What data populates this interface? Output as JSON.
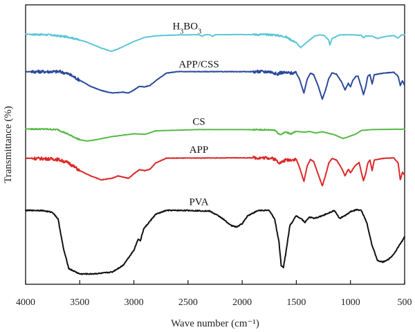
{
  "chart_data": {
    "type": "line",
    "title": "",
    "xlabel": "Wave number (cm⁻¹)",
    "ylabel": "Transmittance (%)",
    "xlim": [
      4000,
      500
    ],
    "x_reversed": true,
    "xticks": [
      4000,
      3500,
      3000,
      2500,
      2000,
      1500,
      1000,
      500
    ],
    "grid": false,
    "legend": "labels-above-curves",
    "series": [
      {
        "name_main": "H",
        "name_sub1": "3",
        "name_mid": "BO",
        "name_sub2": "3",
        "color": "#5bc6d9",
        "offset": 0.88,
        "amplitude": 0.07,
        "label_x": 2510,
        "points": [
          [
            4000,
            0.96
          ],
          [
            3800,
            0.93
          ],
          [
            3600,
            0.8
          ],
          [
            3450,
            0.55
          ],
          [
            3300,
            0.18
          ],
          [
            3210,
            0.0
          ],
          [
            3150,
            0.12
          ],
          [
            3000,
            0.55
          ],
          [
            2900,
            0.78
          ],
          [
            2800,
            0.87
          ],
          [
            2600,
            0.92
          ],
          [
            2400,
            0.93
          ],
          [
            2370,
            0.85
          ],
          [
            2340,
            0.93
          ],
          [
            2300,
            0.93
          ],
          [
            2270,
            0.83
          ],
          [
            2250,
            0.93
          ],
          [
            2000,
            0.94
          ],
          [
            1800,
            0.94
          ],
          [
            1700,
            0.92
          ],
          [
            1600,
            0.82
          ],
          [
            1500,
            0.48
          ],
          [
            1460,
            0.2
          ],
          [
            1420,
            0.42
          ],
          [
            1380,
            0.62
          ],
          [
            1330,
            0.86
          ],
          [
            1280,
            0.92
          ],
          [
            1240,
            0.88
          ],
          [
            1200,
            0.62
          ],
          [
            1190,
            0.35
          ],
          [
            1170,
            0.72
          ],
          [
            1100,
            0.92
          ],
          [
            1000,
            0.93
          ],
          [
            900,
            0.9
          ],
          [
            880,
            0.75
          ],
          [
            860,
            0.86
          ],
          [
            800,
            0.85
          ],
          [
            750,
            0.72
          ],
          [
            700,
            0.8
          ],
          [
            650,
            0.85
          ],
          [
            600,
            0.88
          ],
          [
            560,
            0.74
          ],
          [
            530,
            0.92
          ],
          [
            500,
            0.92
          ]
        ]
      },
      {
        "name": "APP/CSS",
        "color": "#2b4a9b",
        "offset": 0.68,
        "amplitude": 0.12,
        "label_x": 2400,
        "points": [
          [
            4000,
            1.0
          ],
          [
            3800,
            1.0
          ],
          [
            3680,
            1.0
          ],
          [
            3600,
            0.92
          ],
          [
            3500,
            0.72
          ],
          [
            3400,
            0.52
          ],
          [
            3300,
            0.38
          ],
          [
            3200,
            0.3
          ],
          [
            3100,
            0.33
          ],
          [
            3050,
            0.3
          ],
          [
            3000,
            0.4
          ],
          [
            2950,
            0.52
          ],
          [
            2900,
            0.5
          ],
          [
            2850,
            0.55
          ],
          [
            2800,
            0.7
          ],
          [
            2700,
            0.95
          ],
          [
            2600,
            1.0
          ],
          [
            2000,
            1.0
          ],
          [
            1750,
            1.0
          ],
          [
            1700,
            0.96
          ],
          [
            1680,
            0.9
          ],
          [
            1650,
            0.97
          ],
          [
            1500,
            0.95
          ],
          [
            1470,
            0.75
          ],
          [
            1430,
            0.3
          ],
          [
            1400,
            0.75
          ],
          [
            1370,
            0.95
          ],
          [
            1340,
            0.9
          ],
          [
            1300,
            0.55
          ],
          [
            1260,
            0.1
          ],
          [
            1230,
            0.4
          ],
          [
            1200,
            0.78
          ],
          [
            1170,
            0.96
          ],
          [
            1130,
            0.92
          ],
          [
            1080,
            0.65
          ],
          [
            1050,
            0.4
          ],
          [
            1020,
            0.62
          ],
          [
            1000,
            0.5
          ],
          [
            980,
            0.7
          ],
          [
            950,
            0.85
          ],
          [
            930,
            0.85
          ],
          [
            900,
            0.5
          ],
          [
            880,
            0.25
          ],
          [
            860,
            0.5
          ],
          [
            840,
            0.85
          ],
          [
            820,
            0.9
          ],
          [
            800,
            0.6
          ],
          [
            780,
            0.9
          ],
          [
            700,
            0.95
          ],
          [
            600,
            0.98
          ],
          [
            560,
            0.85
          ],
          [
            540,
            0.55
          ],
          [
            520,
            0.7
          ],
          [
            500,
            0.55
          ]
        ]
      },
      {
        "name": "CS",
        "color": "#56b947",
        "offset": 0.525,
        "amplitude": 0.05,
        "label_x": 2400,
        "points": [
          [
            4000,
            1.0
          ],
          [
            3800,
            0.98
          ],
          [
            3700,
            0.94
          ],
          [
            3600,
            0.55
          ],
          [
            3500,
            0.15
          ],
          [
            3430,
            0.05
          ],
          [
            3350,
            0.15
          ],
          [
            3200,
            0.4
          ],
          [
            3000,
            0.62
          ],
          [
            2900,
            0.58
          ],
          [
            2880,
            0.62
          ],
          [
            2800,
            0.85
          ],
          [
            2600,
            0.9
          ],
          [
            2400,
            0.95
          ],
          [
            2000,
            0.95
          ],
          [
            1700,
            0.92
          ],
          [
            1650,
            0.55
          ],
          [
            1600,
            0.75
          ],
          [
            1550,
            0.62
          ],
          [
            1500,
            0.8
          ],
          [
            1420,
            0.75
          ],
          [
            1380,
            0.8
          ],
          [
            1320,
            0.68
          ],
          [
            1260,
            0.78
          ],
          [
            1150,
            0.55
          ],
          [
            1070,
            0.25
          ],
          [
            1030,
            0.35
          ],
          [
            950,
            0.6
          ],
          [
            900,
            0.88
          ],
          [
            800,
            0.95
          ],
          [
            600,
            0.97
          ],
          [
            500,
            0.98
          ]
        ]
      },
      {
        "name": "APP",
        "color": "#dc2828",
        "offset": 0.345,
        "amplitude": 0.12,
        "label_x": 2400,
        "points": [
          [
            4000,
            0.96
          ],
          [
            3800,
            0.94
          ],
          [
            3700,
            0.92
          ],
          [
            3600,
            0.8
          ],
          [
            3500,
            0.55
          ],
          [
            3400,
            0.38
          ],
          [
            3300,
            0.25
          ],
          [
            3200,
            0.3
          ],
          [
            3150,
            0.38
          ],
          [
            3050,
            0.3
          ],
          [
            3000,
            0.45
          ],
          [
            2950,
            0.58
          ],
          [
            2900,
            0.55
          ],
          [
            2850,
            0.6
          ],
          [
            2800,
            0.8
          ],
          [
            2700,
            0.96
          ],
          [
            2000,
            0.97
          ],
          [
            1750,
            0.97
          ],
          [
            1700,
            0.93
          ],
          [
            1650,
            0.8
          ],
          [
            1600,
            0.9
          ],
          [
            1500,
            0.92
          ],
          [
            1470,
            0.65
          ],
          [
            1430,
            0.2
          ],
          [
            1400,
            0.7
          ],
          [
            1370,
            0.92
          ],
          [
            1340,
            0.85
          ],
          [
            1300,
            0.45
          ],
          [
            1260,
            0.05
          ],
          [
            1230,
            0.4
          ],
          [
            1200,
            0.8
          ],
          [
            1170,
            0.95
          ],
          [
            1130,
            0.9
          ],
          [
            1080,
            0.62
          ],
          [
            1050,
            0.38
          ],
          [
            1020,
            0.6
          ],
          [
            1000,
            0.48
          ],
          [
            960,
            0.7
          ],
          [
            920,
            0.82
          ],
          [
            900,
            0.5
          ],
          [
            880,
            0.22
          ],
          [
            860,
            0.45
          ],
          [
            840,
            0.8
          ],
          [
            820,
            0.9
          ],
          [
            800,
            0.55
          ],
          [
            780,
            0.9
          ],
          [
            700,
            0.95
          ],
          [
            600,
            0.97
          ],
          [
            560,
            0.8
          ],
          [
            540,
            0.25
          ],
          [
            520,
            0.5
          ],
          [
            500,
            0.4
          ]
        ]
      },
      {
        "name": "PVA",
        "color": "#111111",
        "offset": 0.0,
        "amplitude": 0.26,
        "label_x": 2400,
        "points": [
          [
            4000,
            0.98
          ],
          [
            3850,
            0.98
          ],
          [
            3750,
            0.95
          ],
          [
            3700,
            0.85
          ],
          [
            3650,
            0.4
          ],
          [
            3600,
            0.1
          ],
          [
            3500,
            0.02
          ],
          [
            3400,
            0.02
          ],
          [
            3300,
            0.03
          ],
          [
            3200,
            0.05
          ],
          [
            3100,
            0.15
          ],
          [
            3000,
            0.38
          ],
          [
            2960,
            0.55
          ],
          [
            2940,
            0.52
          ],
          [
            2910,
            0.7
          ],
          [
            2850,
            0.82
          ],
          [
            2800,
            0.92
          ],
          [
            2700,
            0.98
          ],
          [
            2500,
            0.98
          ],
          [
            2300,
            0.97
          ],
          [
            2200,
            0.88
          ],
          [
            2100,
            0.75
          ],
          [
            2050,
            0.73
          ],
          [
            2000,
            0.78
          ],
          [
            1950,
            0.9
          ],
          [
            1850,
            0.98
          ],
          [
            1750,
            0.98
          ],
          [
            1700,
            0.85
          ],
          [
            1660,
            0.5
          ],
          [
            1640,
            0.15
          ],
          [
            1620,
            0.12
          ],
          [
            1600,
            0.3
          ],
          [
            1560,
            0.75
          ],
          [
            1500,
            0.9
          ],
          [
            1450,
            0.85
          ],
          [
            1420,
            0.8
          ],
          [
            1380,
            0.88
          ],
          [
            1330,
            0.86
          ],
          [
            1260,
            0.9
          ],
          [
            1150,
            0.98
          ],
          [
            1100,
            0.86
          ],
          [
            1050,
            0.9
          ],
          [
            1000,
            0.96
          ],
          [
            950,
            0.99
          ],
          [
            900,
            0.98
          ],
          [
            850,
            0.8
          ],
          [
            800,
            0.45
          ],
          [
            750,
            0.22
          ],
          [
            700,
            0.2
          ],
          [
            650,
            0.24
          ],
          [
            600,
            0.32
          ],
          [
            550,
            0.45
          ],
          [
            500,
            0.58
          ]
        ]
      }
    ]
  }
}
